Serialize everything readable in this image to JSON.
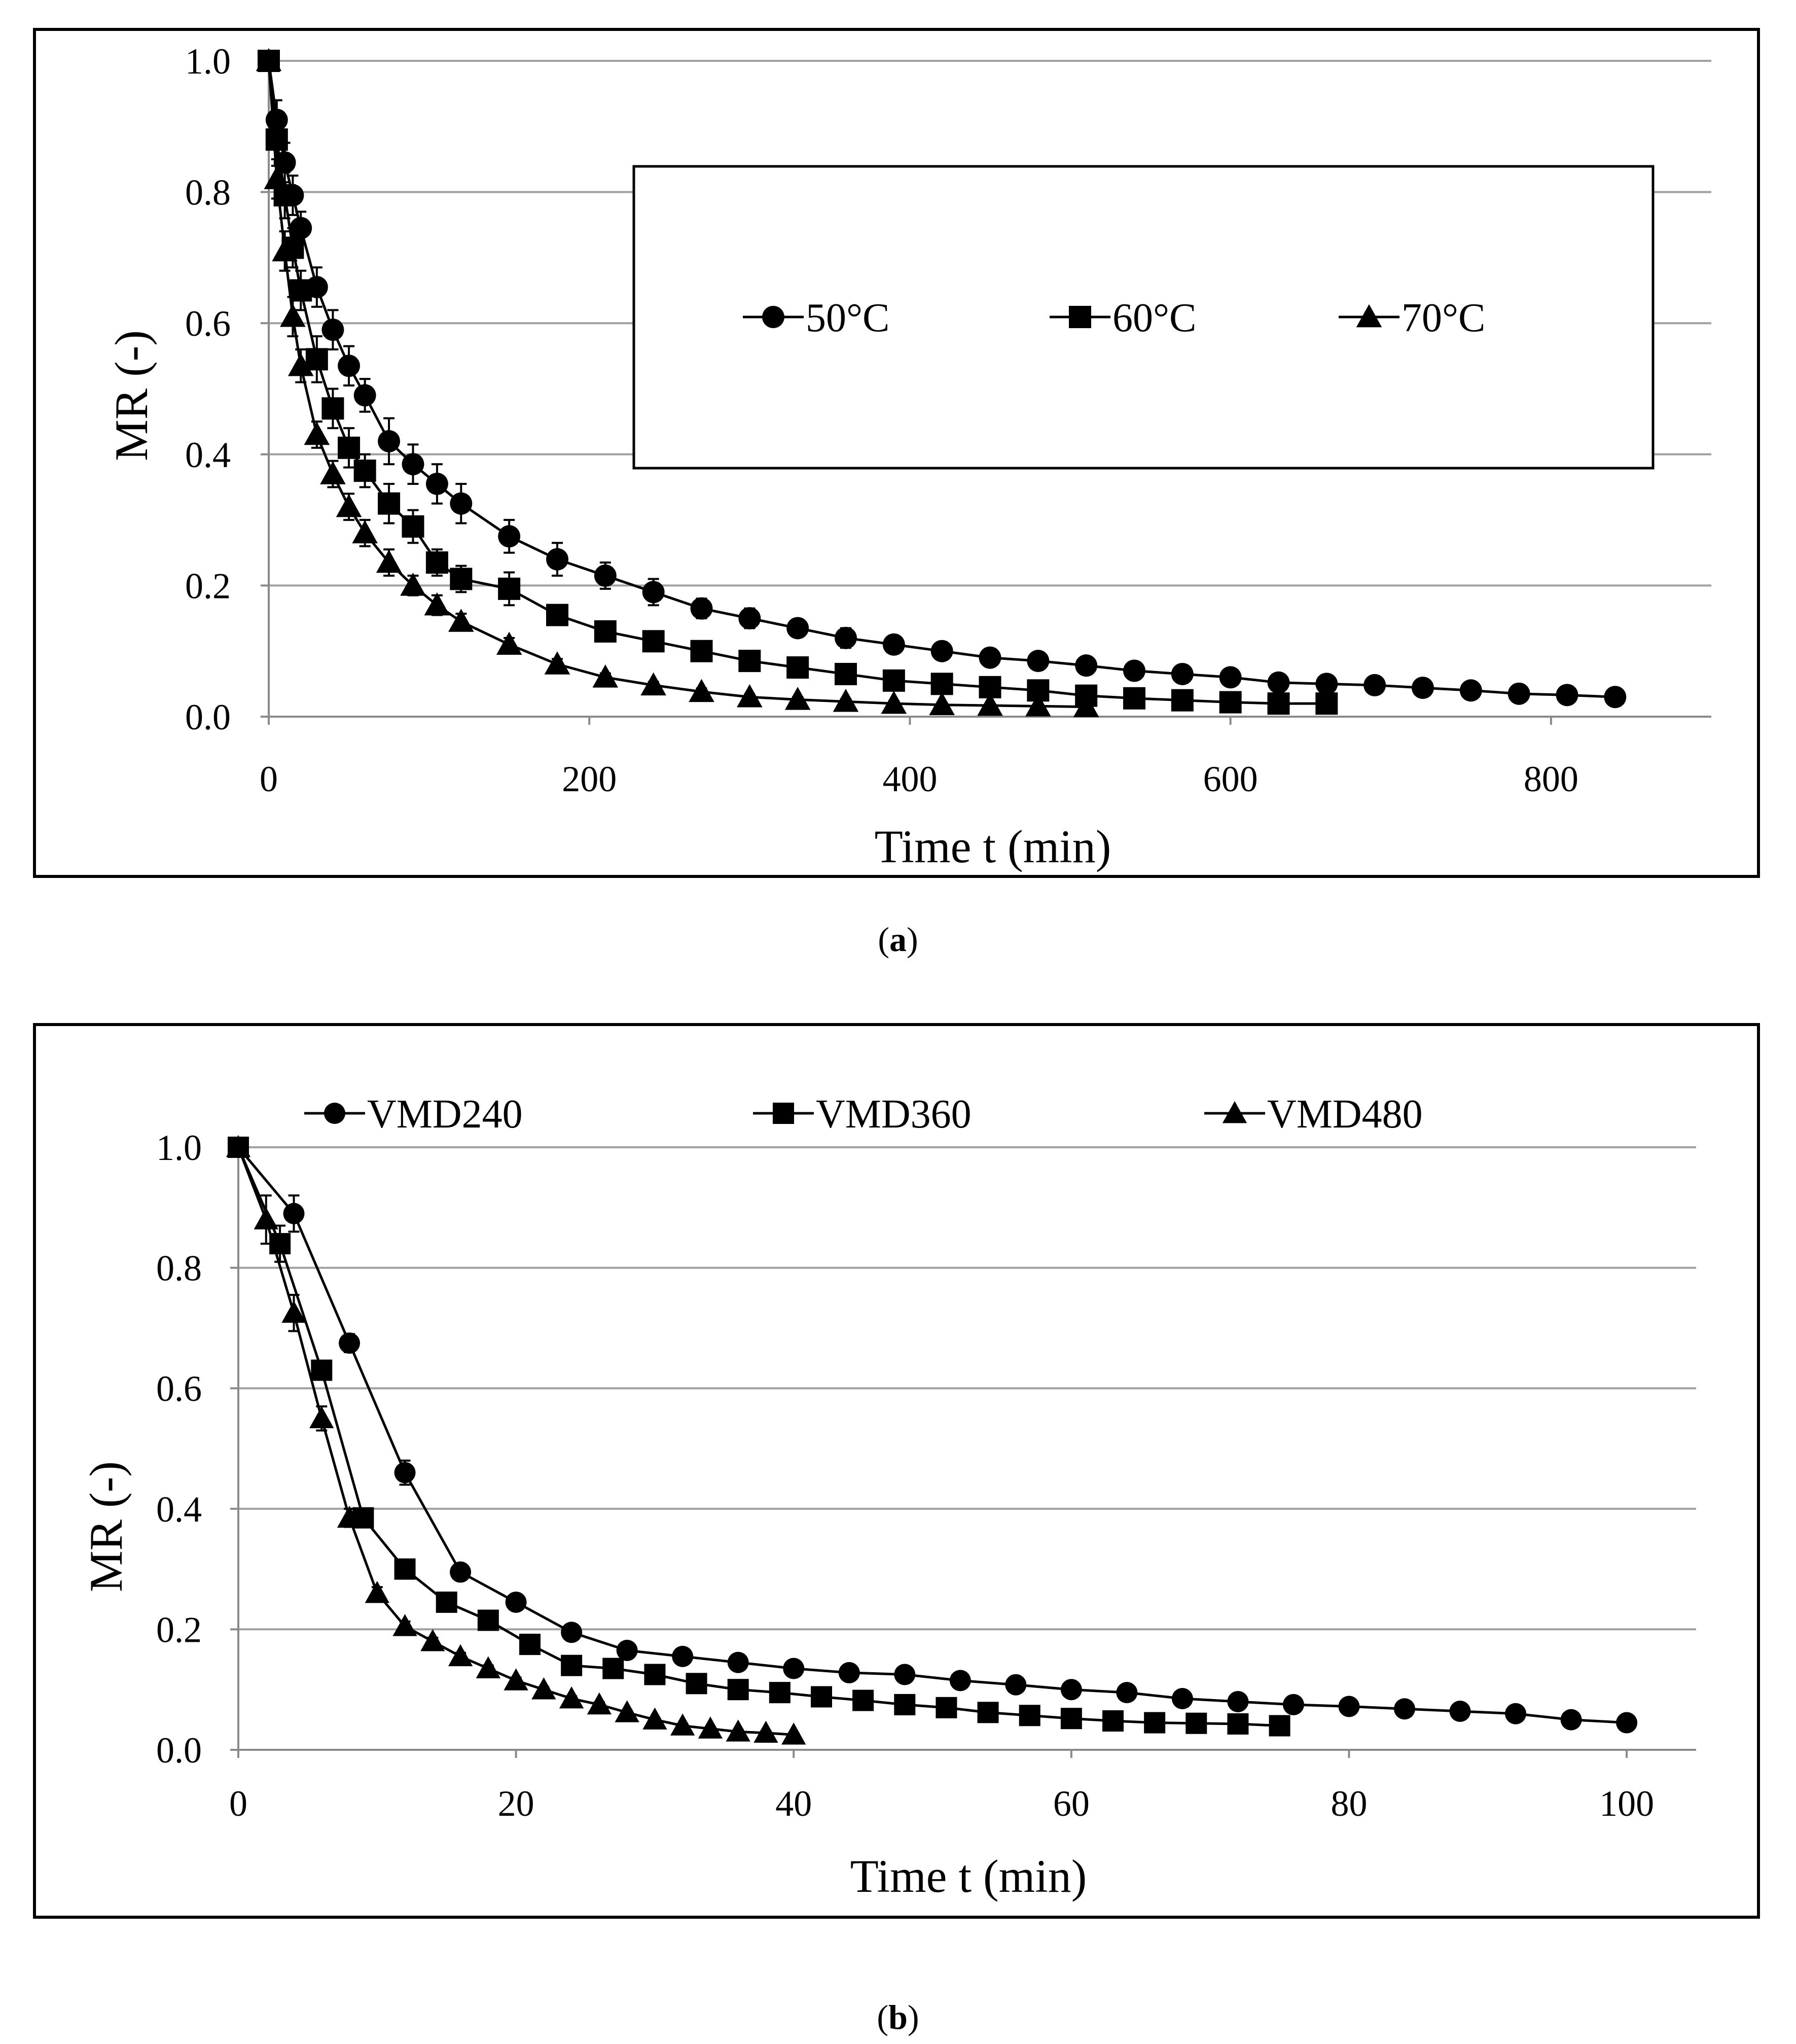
{
  "chart_data": [
    {
      "panel": "a",
      "type": "line",
      "caption": "(a)",
      "caption_letter": "a",
      "title": "",
      "xlabel": "Time t (min)",
      "ylabel": "MR (-)",
      "xlim": [
        0,
        900
      ],
      "ylim": [
        0,
        1.0
      ],
      "xticks": [
        0,
        200,
        400,
        600,
        800
      ],
      "yticks": [
        0.0,
        0.2,
        0.4,
        0.6,
        0.8,
        1.0
      ],
      "xtick_labels": [
        "0",
        "200",
        "400",
        "600",
        "800"
      ],
      "ytick_labels": [
        "0.0",
        "0.2",
        "0.4",
        "0.6",
        "0.8",
        "1.0"
      ],
      "grid": "horizontal",
      "legend": "boxed-upper-right",
      "series": [
        {
          "name": "50°C",
          "marker": "circle",
          "x": [
            0,
            5,
            10,
            15,
            20,
            30,
            40,
            50,
            60,
            75,
            90,
            105,
            120,
            150,
            180,
            210,
            240,
            270,
            300,
            330,
            360,
            390,
            420,
            450,
            480,
            510,
            540,
            570,
            600,
            630,
            660,
            690,
            720,
            750,
            780,
            810,
            840
          ],
          "y": [
            1.0,
            0.91,
            0.845,
            0.795,
            0.745,
            0.655,
            0.59,
            0.535,
            0.49,
            0.42,
            0.385,
            0.355,
            0.325,
            0.275,
            0.24,
            0.215,
            0.19,
            0.165,
            0.15,
            0.135,
            0.12,
            0.11,
            0.1,
            0.09,
            0.085,
            0.078,
            0.07,
            0.065,
            0.06,
            0.052,
            0.05,
            0.048,
            0.044,
            0.04,
            0.035,
            0.033,
            0.03
          ],
          "err": [
            0.0,
            0.03,
            0.03,
            0.03,
            0.025,
            0.03,
            0.03,
            0.03,
            0.025,
            0.035,
            0.03,
            0.03,
            0.03,
            0.025,
            0.025,
            0.02,
            0.02,
            0.015,
            0.015,
            0.01,
            0.015,
            0.01,
            0.01,
            0.01,
            0.01,
            0.01,
            0.008,
            0.008,
            0.008,
            0.006,
            0.006,
            0.006,
            0.005,
            0.005,
            0.005,
            0.005,
            0.005
          ]
        },
        {
          "name": "60°C",
          "marker": "square",
          "x": [
            0,
            5,
            10,
            15,
            20,
            30,
            40,
            50,
            60,
            75,
            90,
            105,
            120,
            150,
            180,
            210,
            240,
            270,
            300,
            330,
            360,
            390,
            420,
            450,
            480,
            510,
            540,
            570,
            600,
            630,
            660
          ],
          "y": [
            1.0,
            0.88,
            0.795,
            0.715,
            0.65,
            0.545,
            0.47,
            0.41,
            0.375,
            0.325,
            0.29,
            0.235,
            0.21,
            0.195,
            0.155,
            0.13,
            0.115,
            0.1,
            0.085,
            0.075,
            0.065,
            0.055,
            0.05,
            0.045,
            0.04,
            0.032,
            0.028,
            0.025,
            0.022,
            0.02,
            0.02
          ],
          "err": [
            0.0,
            0.04,
            0.035,
            0.03,
            0.03,
            0.035,
            0.03,
            0.03,
            0.025,
            0.03,
            0.025,
            0.02,
            0.02,
            0.025,
            0.015,
            0.012,
            0.012,
            0.01,
            0.01,
            0.008,
            0.008,
            0.006,
            0.006,
            0.006,
            0.005,
            0.005,
            0.005,
            0.004,
            0.004,
            0.004,
            0.004
          ]
        },
        {
          "name": "70°C",
          "marker": "triangle",
          "x": [
            0,
            5,
            10,
            15,
            20,
            30,
            40,
            50,
            60,
            75,
            90,
            105,
            120,
            150,
            180,
            210,
            240,
            270,
            300,
            330,
            360,
            390,
            420,
            450,
            480,
            510
          ],
          "y": [
            1.0,
            0.82,
            0.71,
            0.61,
            0.535,
            0.43,
            0.37,
            0.32,
            0.28,
            0.235,
            0.2,
            0.17,
            0.145,
            0.11,
            0.08,
            0.06,
            0.048,
            0.038,
            0.03,
            0.026,
            0.023,
            0.02,
            0.018,
            0.017,
            0.016,
            0.015
          ],
          "err": [
            0.0,
            0.03,
            0.03,
            0.03,
            0.025,
            0.02,
            0.02,
            0.02,
            0.02,
            0.02,
            0.015,
            0.015,
            0.012,
            0.01,
            0.008,
            0.006,
            0.005,
            0.005,
            0.004,
            0.004,
            0.004,
            0.004,
            0.003,
            0.003,
            0.003,
            0.003
          ]
        }
      ]
    },
    {
      "panel": "b",
      "type": "line",
      "caption": "(b)",
      "caption_letter": "b",
      "title": "",
      "xlabel": "Time t (min)",
      "ylabel": "MR (-)",
      "xlim": [
        0,
        105
      ],
      "ylim": [
        0,
        1.0
      ],
      "xticks": [
        0,
        20,
        40,
        60,
        80,
        100
      ],
      "yticks": [
        0.0,
        0.2,
        0.4,
        0.6,
        0.8,
        1.0
      ],
      "xtick_labels": [
        "0",
        "20",
        "40",
        "60",
        "80",
        "100"
      ],
      "ytick_labels": [
        "0.0",
        "0.2",
        "0.4",
        "0.6",
        "0.8",
        "1.0"
      ],
      "grid": "horizontal",
      "legend": "top",
      "series": [
        {
          "name": "VMD240",
          "marker": "circle",
          "x": [
            0,
            4,
            8,
            12,
            16,
            20,
            24,
            28,
            32,
            36,
            40,
            44,
            48,
            52,
            56,
            60,
            64,
            68,
            72,
            76,
            80,
            84,
            88,
            92,
            96,
            100
          ],
          "y": [
            1.0,
            0.89,
            0.675,
            0.46,
            0.295,
            0.245,
            0.195,
            0.165,
            0.155,
            0.145,
            0.135,
            0.128,
            0.125,
            0.115,
            0.108,
            0.1,
            0.095,
            0.085,
            0.08,
            0.075,
            0.072,
            0.068,
            0.064,
            0.06,
            0.05,
            0.045
          ],
          "err": [
            0.0,
            0.03,
            0.015,
            0.02,
            0.01,
            0.01,
            0.008,
            0.008,
            0.006,
            0.006,
            0.006,
            0.005,
            0.005,
            0.005,
            0.005,
            0.004,
            0.004,
            0.004,
            0.004,
            0.004,
            0.003,
            0.003,
            0.003,
            0.003,
            0.003,
            0.003
          ]
        },
        {
          "name": "VMD360",
          "marker": "square",
          "x": [
            0,
            3,
            6,
            9,
            12,
            15,
            18,
            21,
            24,
            27,
            30,
            33,
            36,
            39,
            42,
            45,
            48,
            51,
            54,
            57,
            60,
            63,
            66,
            69,
            72,
            75
          ],
          "y": [
            1.0,
            0.84,
            0.63,
            0.385,
            0.3,
            0.245,
            0.215,
            0.175,
            0.14,
            0.135,
            0.125,
            0.11,
            0.1,
            0.095,
            0.088,
            0.082,
            0.075,
            0.07,
            0.062,
            0.057,
            0.052,
            0.048,
            0.045,
            0.044,
            0.043,
            0.04
          ],
          "err": [
            0.0,
            0.03,
            0.015,
            0.015,
            0.01,
            0.01,
            0.008,
            0.008,
            0.006,
            0.006,
            0.005,
            0.005,
            0.005,
            0.005,
            0.004,
            0.004,
            0.004,
            0.004,
            0.004,
            0.003,
            0.003,
            0.003,
            0.003,
            0.003,
            0.003,
            0.003
          ]
        },
        {
          "name": "VMD480",
          "marker": "triangle",
          "x": [
            0,
            2,
            4,
            6,
            8,
            10,
            12,
            14,
            16,
            18,
            20,
            22,
            24,
            26,
            28,
            30,
            32,
            34,
            36,
            38,
            40
          ],
          "y": [
            1.0,
            0.88,
            0.725,
            0.55,
            0.385,
            0.26,
            0.205,
            0.18,
            0.155,
            0.135,
            0.115,
            0.1,
            0.085,
            0.075,
            0.062,
            0.05,
            0.04,
            0.035,
            0.03,
            0.028,
            0.025
          ],
          "err": [
            0.0,
            0.04,
            0.03,
            0.02,
            0.015,
            0.01,
            0.008,
            0.006,
            0.006,
            0.005,
            0.005,
            0.004,
            0.004,
            0.004,
            0.003,
            0.003,
            0.003,
            0.003,
            0.003,
            0.003,
            0.003
          ]
        }
      ]
    }
  ]
}
